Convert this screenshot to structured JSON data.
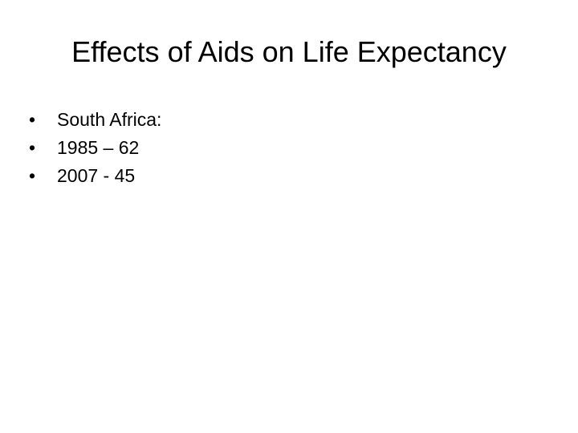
{
  "slide": {
    "title": "Effects of Aids on Life Expectancy",
    "bullets": [
      "South Africa:",
      "1985 – 62",
      "2007 - 45"
    ]
  }
}
